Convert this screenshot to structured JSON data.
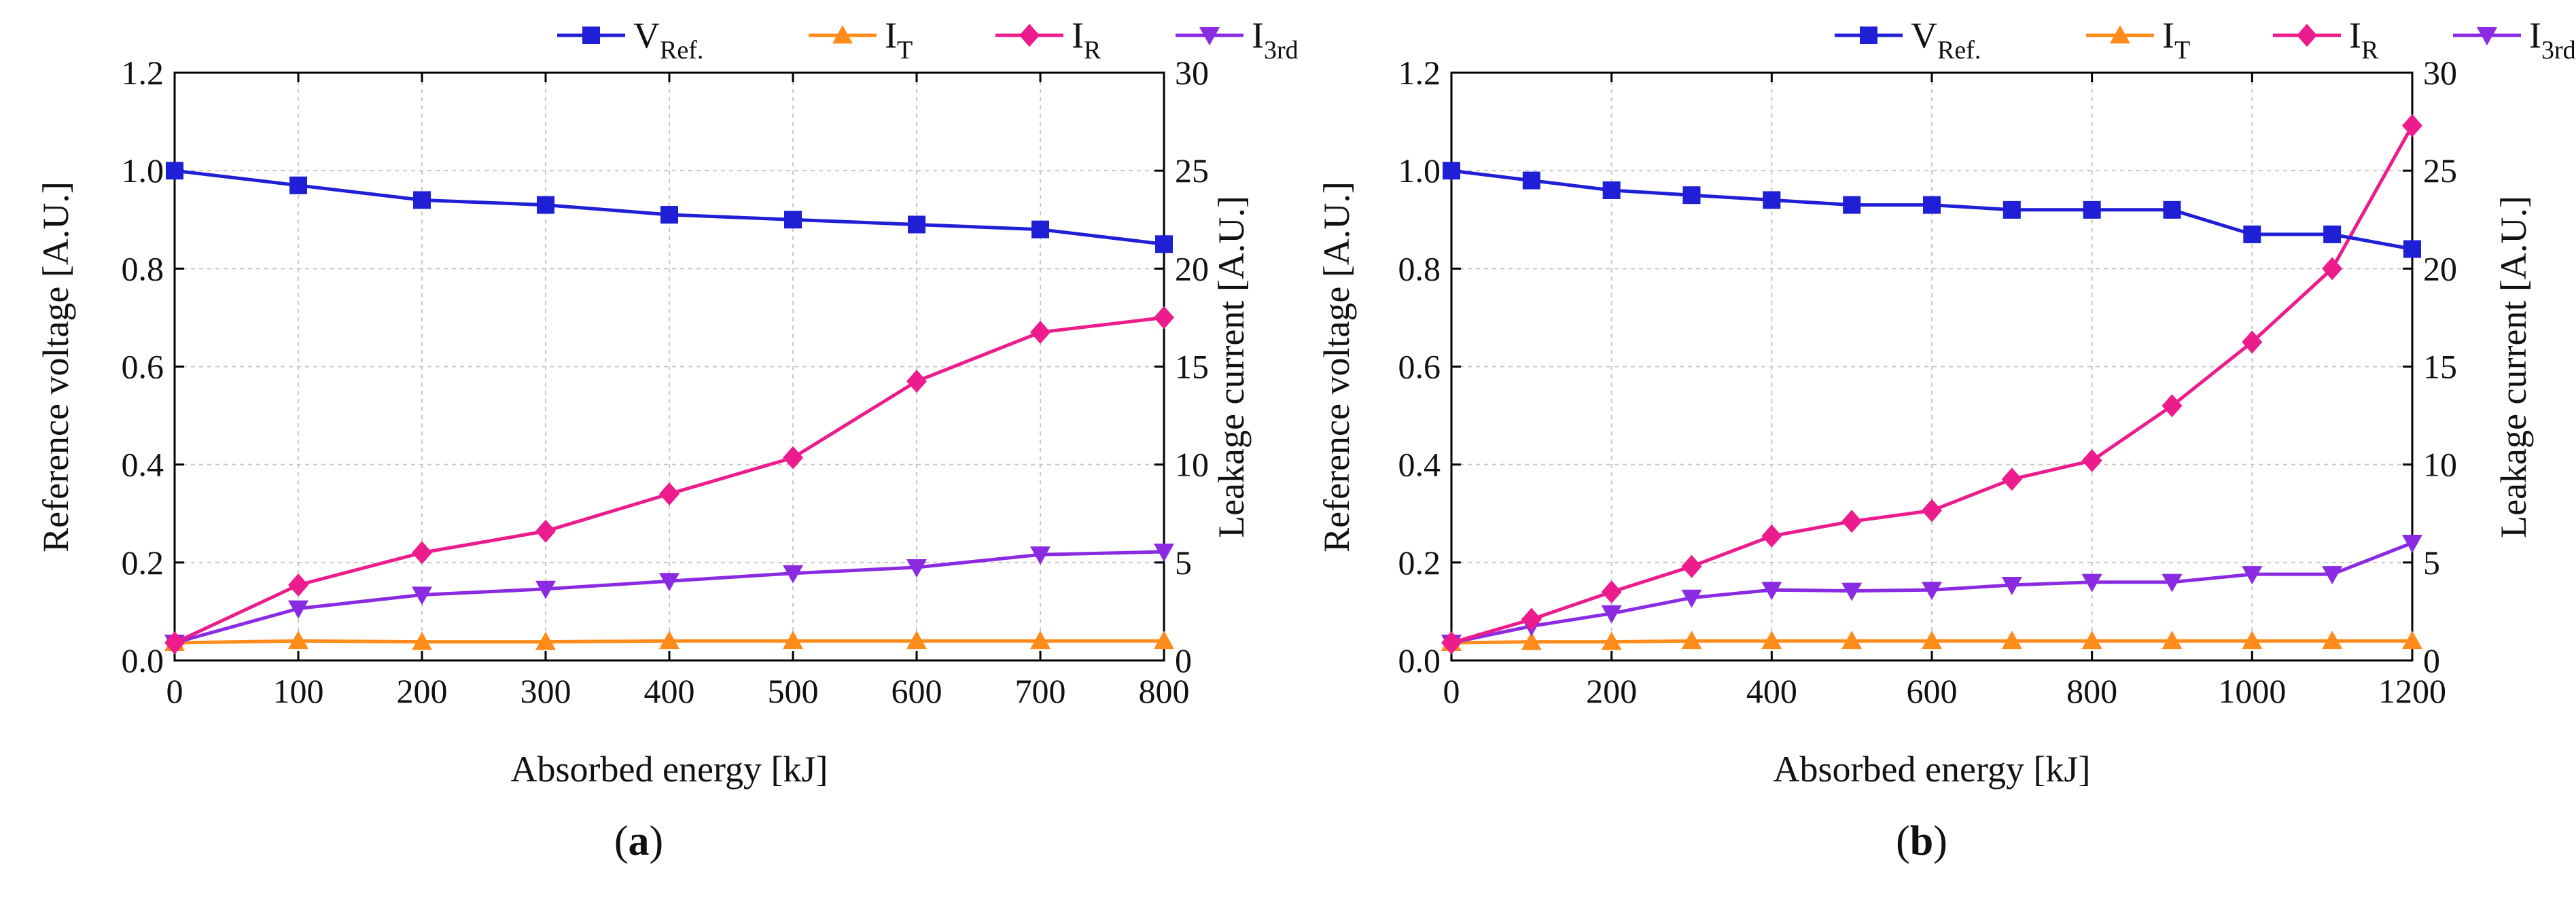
{
  "legend": [
    {
      "key": "vref",
      "main": "V",
      "sub": "Ref.",
      "color": "#1f1fd6",
      "marker": "square",
      "axis": "left"
    },
    {
      "key": "it",
      "main": "I",
      "sub": "T",
      "color": "#ff8c1a",
      "marker": "triangle-up",
      "axis": "right"
    },
    {
      "key": "ir",
      "main": "I",
      "sub": "R",
      "color": "#ec1c8c",
      "marker": "diamond",
      "axis": "right"
    },
    {
      "key": "i3rd",
      "main": "I",
      "sub": "3rd",
      "color": "#8a2be2",
      "marker": "triangle-down",
      "axis": "right"
    }
  ],
  "chart_data": [
    {
      "type": "line",
      "panel": "a",
      "panel_label_open": "(",
      "panel_label_letter": "a",
      "panel_label_close": ")",
      "xlabel": "Absorbed energy [kJ]",
      "ylabel_left": "Reference voltage [A.U.]",
      "ylabel_right": "Leakage current [A.U.]",
      "xlim": [
        0,
        800
      ],
      "xticks": [
        0,
        100,
        200,
        300,
        400,
        500,
        600,
        700,
        800
      ],
      "ylim_left": [
        0,
        1.2
      ],
      "yticks_left": [
        "0.0",
        "0.2",
        "0.4",
        "0.6",
        "0.8",
        "1.0",
        "1.2"
      ],
      "ylim_right": [
        0,
        30
      ],
      "yticks_right": [
        "0",
        "5",
        "10",
        "15",
        "20",
        "25",
        "30"
      ],
      "grid": true,
      "legend_position": "top-right",
      "x": [
        0,
        100,
        200,
        300,
        400,
        500,
        600,
        700,
        800
      ],
      "series": [
        {
          "key": "vref",
          "name": "V_Ref.",
          "axis": "left",
          "values": [
            1.0,
            0.97,
            0.94,
            0.93,
            0.91,
            0.9,
            0.89,
            0.88,
            0.85
          ]
        },
        {
          "key": "it",
          "name": "I_T",
          "axis": "right",
          "values": [
            0.9,
            1.0,
            0.95,
            0.95,
            1.0,
            1.0,
            1.0,
            1.0,
            1.0
          ]
        },
        {
          "key": "ir",
          "name": "I_R",
          "axis": "right",
          "values": [
            0.9,
            3.85,
            5.5,
            6.6,
            8.5,
            10.35,
            14.25,
            16.75,
            17.5
          ]
        },
        {
          "key": "i3rd",
          "name": "I_3rd",
          "axis": "right",
          "values": [
            0.9,
            2.65,
            3.35,
            3.65,
            4.05,
            4.45,
            4.75,
            5.4,
            5.55
          ]
        }
      ]
    },
    {
      "type": "line",
      "panel": "b",
      "panel_label_open": "(",
      "panel_label_letter": "b",
      "panel_label_close": ")",
      "xlabel": "Absorbed energy [kJ]",
      "ylabel_left": "Reference voltage [A.U.]",
      "ylabel_right": "Leakage current [A.U.]",
      "xlim": [
        0,
        1200
      ],
      "xticks": [
        0,
        200,
        400,
        600,
        800,
        1000,
        1200
      ],
      "ylim_left": [
        0,
        1.2
      ],
      "yticks_left": [
        "0.0",
        "0.2",
        "0.4",
        "0.6",
        "0.8",
        "1.0",
        "1.2"
      ],
      "ylim_right": [
        0,
        30
      ],
      "yticks_right": [
        "0",
        "5",
        "10",
        "15",
        "20",
        "25",
        "30"
      ],
      "grid": true,
      "legend_position": "top-right",
      "x": [
        0,
        100,
        200,
        300,
        400,
        500,
        600,
        700,
        800,
        900,
        1000,
        1100,
        1200
      ],
      "series": [
        {
          "key": "vref",
          "name": "V_Ref.",
          "axis": "left",
          "values": [
            1.0,
            0.98,
            0.96,
            0.95,
            0.94,
            0.93,
            0.93,
            0.92,
            0.92,
            0.92,
            0.87,
            0.87,
            0.84
          ]
        },
        {
          "key": "it",
          "name": "I_T",
          "axis": "right",
          "values": [
            0.9,
            0.95,
            0.95,
            1.0,
            1.0,
            1.0,
            1.0,
            1.0,
            1.0,
            1.0,
            1.0,
            1.0,
            1.0
          ]
        },
        {
          "key": "ir",
          "name": "I_R",
          "axis": "right",
          "values": [
            0.9,
            2.1,
            3.5,
            4.8,
            6.35,
            7.1,
            7.65,
            9.25,
            10.2,
            13.0,
            16.25,
            20.0,
            27.3
          ]
        },
        {
          "key": "i3rd",
          "name": "I_3rd",
          "axis": "right",
          "values": [
            0.9,
            1.75,
            2.4,
            3.2,
            3.6,
            3.55,
            3.6,
            3.85,
            4.0,
            4.0,
            4.4,
            4.4,
            6.0
          ]
        }
      ]
    }
  ]
}
